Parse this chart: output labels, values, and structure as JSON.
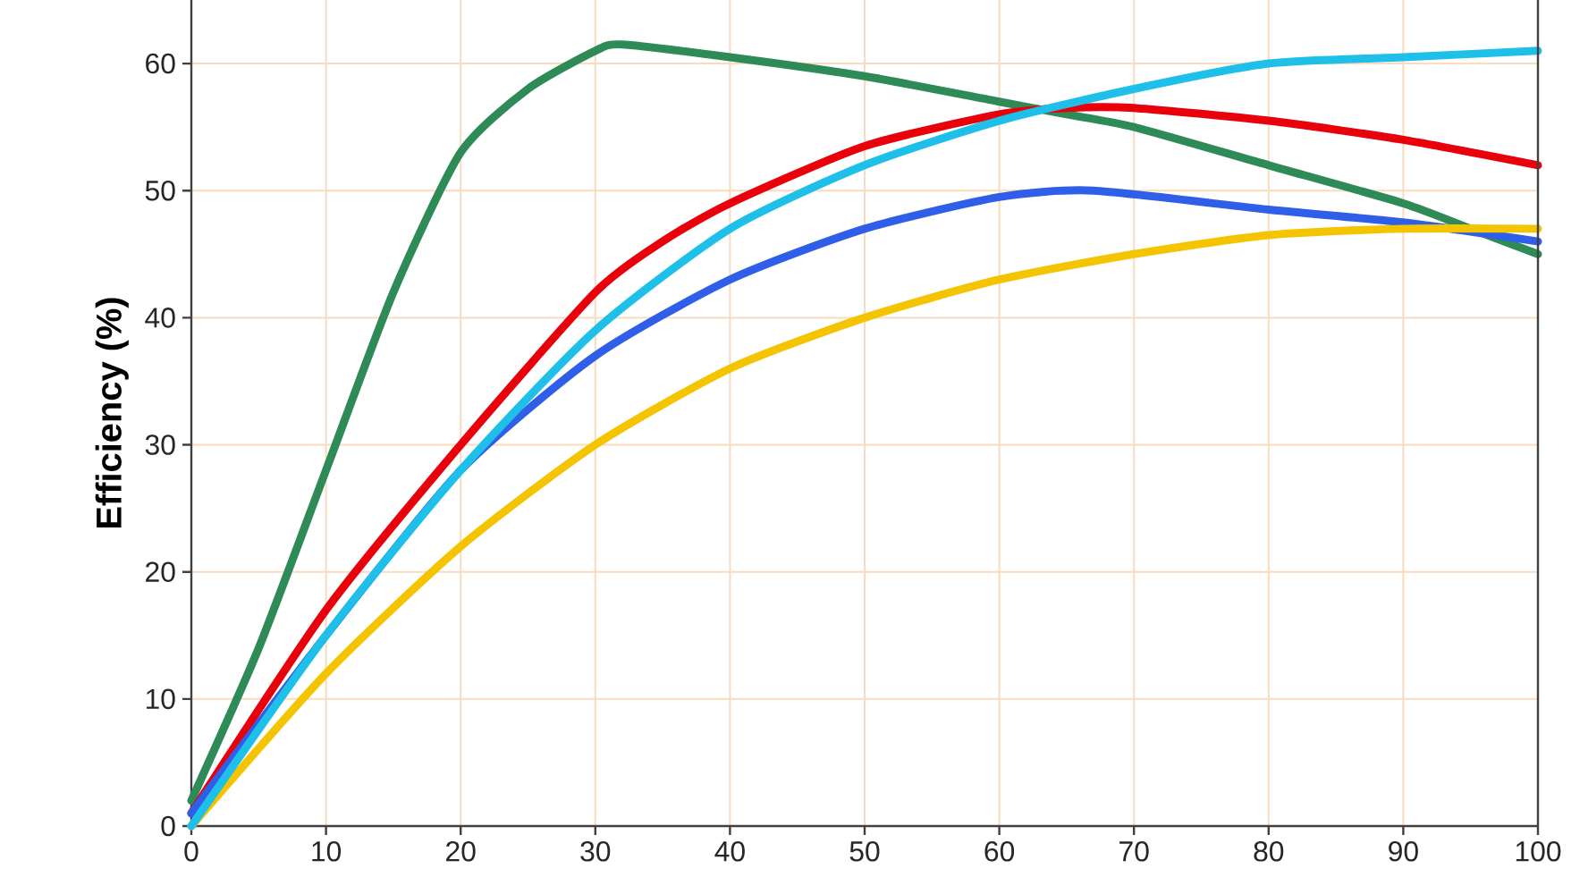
{
  "chart_data": {
    "type": "line",
    "ylabel": "Efficiency (%)",
    "xlim": [
      0,
      100
    ],
    "ylim": [
      0,
      65
    ],
    "xticks": [
      0,
      10,
      20,
      30,
      40,
      50,
      60,
      70,
      80,
      90,
      100
    ],
    "yticks": [
      0,
      10,
      20,
      30,
      40,
      50,
      60
    ],
    "grid": true,
    "line_style": "solid",
    "marker": "none",
    "series": [
      {
        "color": "#2e8b57",
        "x": [
          0,
          5,
          10,
          15,
          20,
          25,
          30,
          32,
          40,
          50,
          60,
          65,
          70,
          80,
          90,
          95,
          100
        ],
        "values": [
          2,
          14,
          28,
          42,
          53,
          58,
          61,
          61.5,
          60.5,
          59,
          57,
          56,
          55,
          52,
          49,
          47,
          45
        ]
      },
      {
        "color": "#e8000b",
        "x": [
          0,
          10,
          20,
          30,
          35,
          40,
          50,
          60,
          65,
          70,
          80,
          90,
          100
        ],
        "values": [
          1,
          17,
          30,
          42,
          46,
          49,
          53.5,
          56,
          56.5,
          56.5,
          55.5,
          54,
          52
        ]
      },
      {
        "color": "#2f5fe8",
        "x": [
          0,
          10,
          20,
          30,
          40,
          50,
          60,
          67,
          80,
          90,
          100
        ],
        "values": [
          1,
          15,
          28,
          37,
          43,
          47,
          49.5,
          50,
          48.5,
          47.5,
          46
        ]
      },
      {
        "color": "#f5c400",
        "x": [
          0,
          10,
          20,
          30,
          40,
          50,
          60,
          70,
          80,
          90,
          100
        ],
        "values": [
          0,
          12,
          22,
          30,
          36,
          40,
          43,
          45,
          46.5,
          47,
          47
        ]
      },
      {
        "color": "#1ec0ea",
        "x": [
          0,
          10,
          20,
          30,
          40,
          50,
          60,
          70,
          80,
          90,
          100
        ],
        "values": [
          0,
          15,
          28,
          39,
          47,
          52,
          55.5,
          58,
          60,
          60.5,
          61
        ]
      }
    ]
  }
}
